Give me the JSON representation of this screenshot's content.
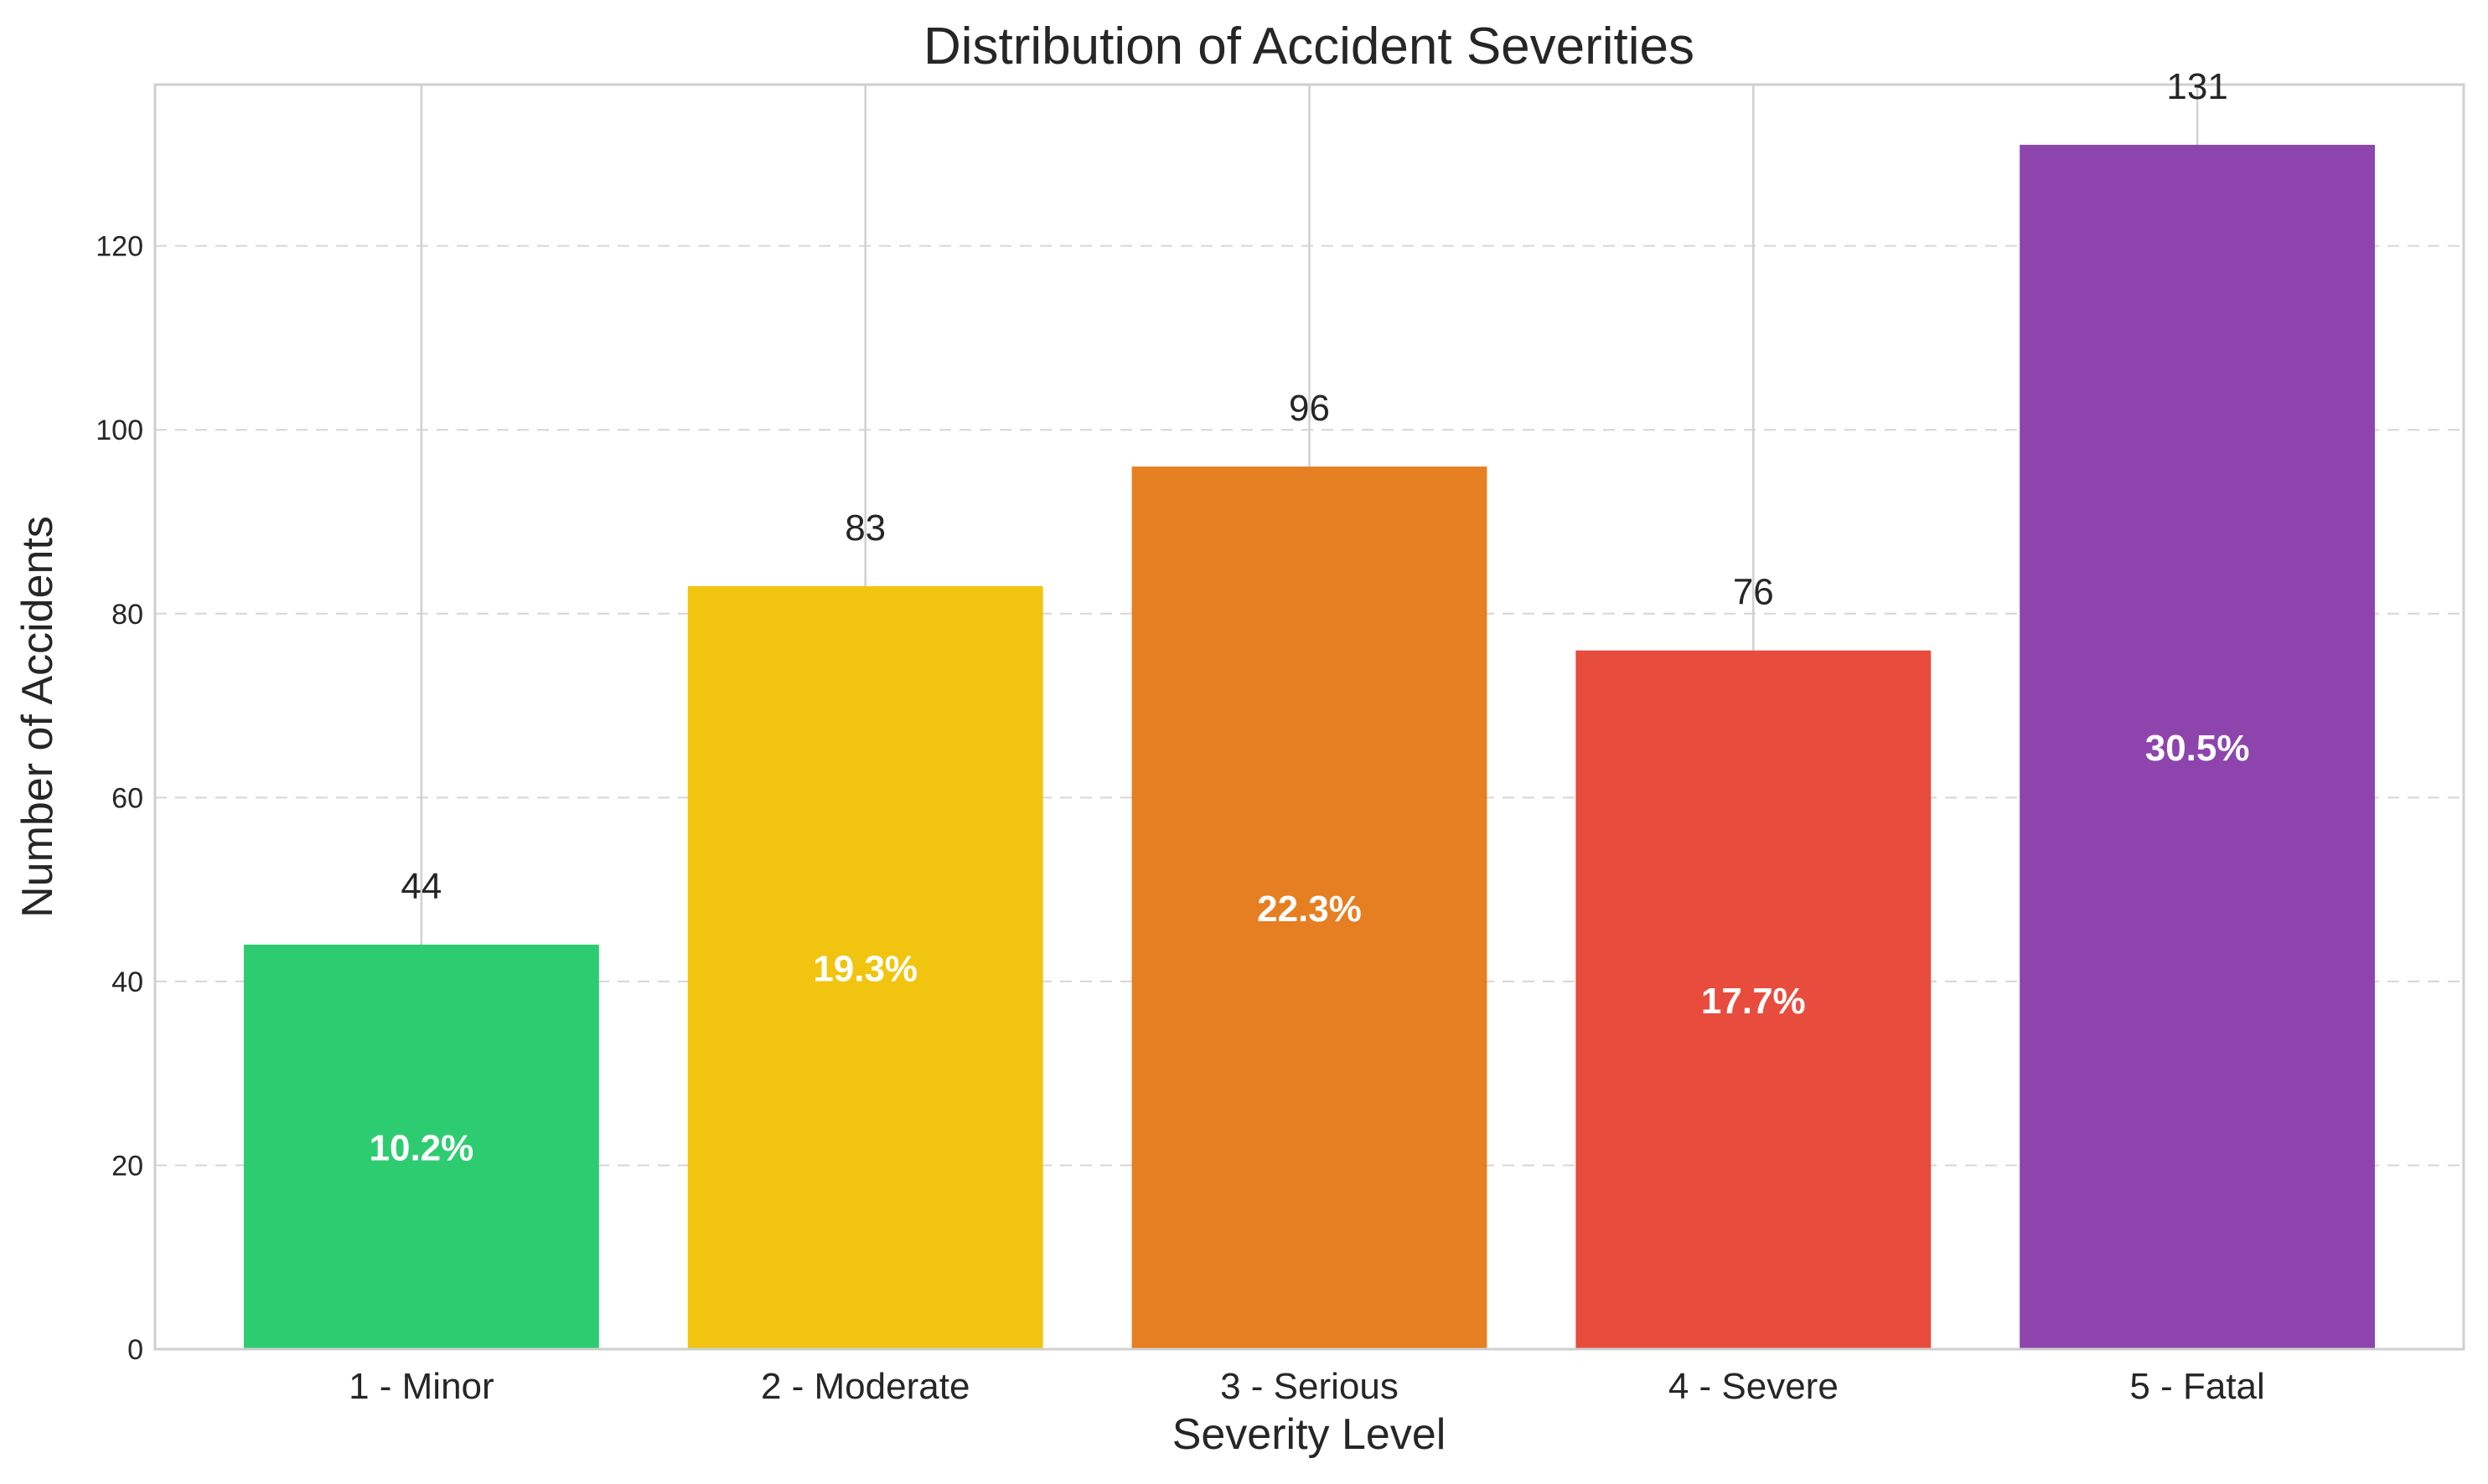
{
  "chart_data": {
    "type": "bar",
    "title": "Distribution of Accident Severities",
    "xlabel": "Severity Level",
    "ylabel": "Number of Accidents",
    "categories": [
      "1 - Minor",
      "2 - Moderate",
      "3 - Serious",
      "4 - Severe",
      "5 - Fatal"
    ],
    "values": [
      44,
      83,
      96,
      76,
      131
    ],
    "value_labels": [
      "44",
      "83",
      "96",
      "76",
      "131"
    ],
    "percent_labels": [
      "10.2%",
      "19.3%",
      "22.3%",
      "17.7%",
      "30.5%"
    ],
    "colors": [
      "#2ecc71",
      "#f1c40f",
      "#e67e22",
      "#e74c3c",
      "#8e44ad"
    ],
    "ylim": [
      0,
      137.55
    ],
    "yticks": [
      0,
      20,
      40,
      60,
      80,
      100,
      120
    ],
    "grid": {
      "horizontal": "dashed",
      "vertical": "solid"
    },
    "legend": "none"
  }
}
